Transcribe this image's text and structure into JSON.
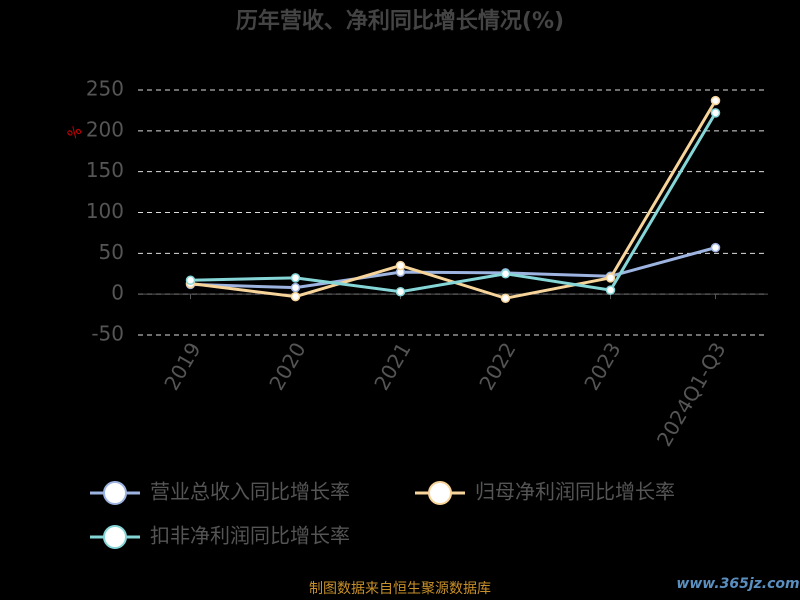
{
  "chart_data": {
    "type": "line",
    "title": "历年营收、净利同比增长情况(%)",
    "y_label": "%",
    "categories": [
      "2019",
      "2020",
      "2021",
      "2022",
      "2023",
      "2024Q1-Q3"
    ],
    "series": [
      {
        "name": "营业总收入同比增长率",
        "color": "#9db3e0",
        "values": [
          12,
          8,
          27,
          26,
          22,
          57
        ]
      },
      {
        "name": "归母净利润同比增长率",
        "color": "#f7d49a",
        "values": [
          13,
          -3,
          35,
          -5,
          20,
          237
        ]
      },
      {
        "name": "扣非净利润同比增长率",
        "color": "#86d6d8",
        "values": [
          17,
          20,
          3,
          25,
          5,
          222
        ]
      }
    ],
    "ylim": [
      -50,
      250
    ],
    "yticks": [
      -50,
      0,
      50,
      100,
      150,
      200,
      250
    ],
    "grid": true,
    "source": "制图数据来自恒生聚源数据库",
    "watermark": "www.365jz.com"
  }
}
